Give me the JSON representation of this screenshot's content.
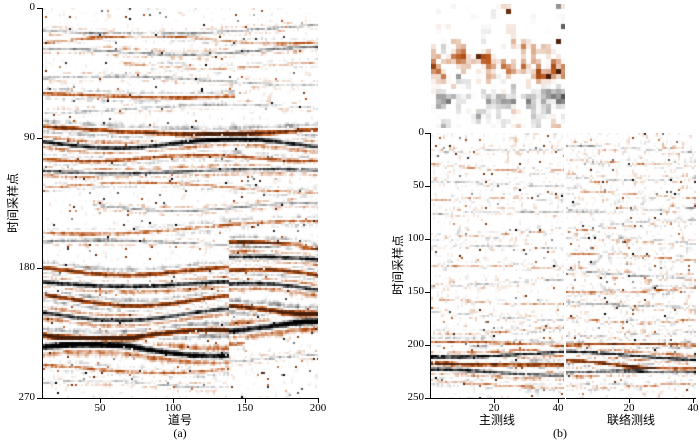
{
  "panels": {
    "a": {
      "caption": "(a)",
      "xlabel": "道号",
      "ylabel": "时间采样点",
      "yticks": [
        "0",
        "90",
        "180",
        "270"
      ],
      "xticks": [
        "50",
        "100",
        "150",
        "200"
      ]
    },
    "b": {
      "caption": "(b)",
      "xlabel_left": "主测线",
      "xlabel_right": "联络测线",
      "ylabel": "时间采样点",
      "yticks": [
        "0",
        "50",
        "100",
        "150",
        "200",
        "250"
      ],
      "xticks_left": [
        "20",
        "40"
      ],
      "xticks_right": [
        "20",
        "40"
      ]
    }
  },
  "chart_data": [
    {
      "type": "heatmap",
      "panel": "(a)",
      "content": "2-D seismic amplitude section; white background with gray speckle noise and strong horizontal reflection events rendered black (positive) and orange-brown (negative); deep strong banded events offset downward-left of trace ~140",
      "xlabel": "道号",
      "ylabel": "时间采样点",
      "xlim": [
        10,
        200
      ],
      "ylim": [
        270,
        0
      ],
      "xticks": [
        50,
        100,
        150,
        200
      ],
      "yticks": [
        0,
        90,
        180,
        270
      ],
      "strong_event_times_samples": [
        84,
        94,
        104,
        113,
        182,
        191,
        202,
        212,
        226,
        237
      ],
      "colormap": [
        "#ffffff",
        "#b85418",
        "#000000"
      ]
    },
    {
      "type": "heatmap",
      "panel": "(b)",
      "content": "3-D seismic sections side by side: inline (主测线) and crossline (联络测线), each mostly faint speckle with a strong black/orange event band near samples 200-230; a coarse blocky noisy patch image sits above the inline section",
      "ylabel": "时间采样点",
      "ylim": [
        250,
        0
      ],
      "yticks": [
        0,
        50,
        100,
        150,
        200,
        250
      ],
      "sections": [
        {
          "xlabel": "主测线",
          "xticks": [
            20,
            40
          ],
          "xlim": [
            0,
            42
          ]
        },
        {
          "xlabel": "联络测线",
          "xticks": [
            20,
            40
          ],
          "xlim": [
            0,
            41
          ]
        }
      ],
      "strong_event_times_samples": [
        202,
        210,
        219,
        228
      ],
      "colormap": [
        "#ffffff",
        "#b85418",
        "#000000"
      ]
    }
  ]
}
